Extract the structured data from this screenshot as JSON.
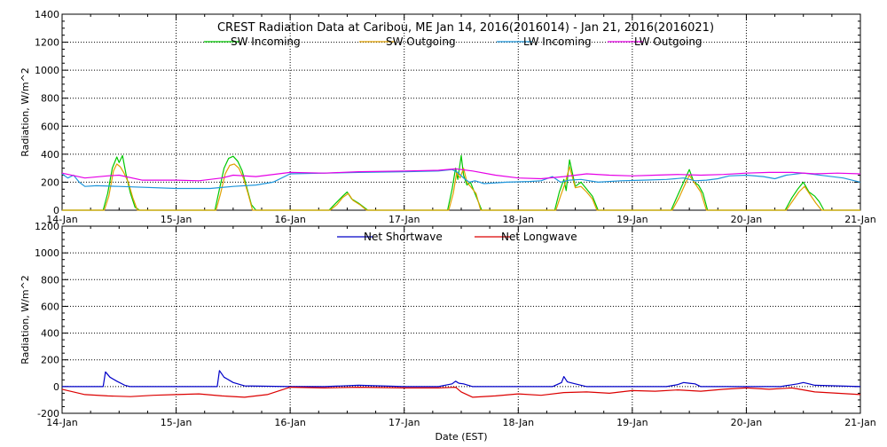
{
  "chart_data": [
    {
      "type": "line",
      "title": "CREST Radiation Data at Caribou, ME   Jan 14, 2016(2016014) - Jan 21, 2016(2016021)",
      "ylabel": "Radiation, W/m^2",
      "xlabel": "",
      "ylim": [
        0,
        1400
      ],
      "xlim": [
        0,
        7
      ],
      "yticks": [
        0,
        200,
        400,
        600,
        800,
        1000,
        1200,
        1400
      ],
      "xticks": [
        "14-Jan",
        "15-Jan",
        "16-Jan",
        "17-Jan",
        "18-Jan",
        "19-Jan",
        "20-Jan",
        "21-Jan"
      ],
      "grid": true,
      "legend": "top",
      "series": [
        {
          "name": "SW Incoming",
          "color": "#00c800",
          "x": [
            0,
            0.36,
            0.4,
            0.44,
            0.48,
            0.5,
            0.53,
            0.56,
            0.6,
            0.64,
            0.68,
            1,
            1.34,
            1.38,
            1.42,
            1.46,
            1.5,
            1.54,
            1.58,
            1.62,
            1.66,
            1.7,
            2,
            2.34,
            2.4,
            2.46,
            2.5,
            2.54,
            2.6,
            2.68,
            3,
            3.38,
            3.42,
            3.45,
            3.47,
            3.5,
            3.52,
            3.55,
            3.58,
            3.64,
            3.68,
            4,
            4.32,
            4.36,
            4.4,
            4.42,
            4.45,
            4.5,
            4.55,
            4.6,
            4.65,
            4.7,
            5,
            5.34,
            5.4,
            5.45,
            5.5,
            5.54,
            5.58,
            5.62,
            5.66,
            6,
            6.34,
            6.4,
            6.45,
            6.5,
            6.55,
            6.6,
            6.64,
            6.68,
            7
          ],
          "values": [
            0,
            0,
            120,
            300,
            380,
            340,
            390,
            260,
            120,
            20,
            0,
            0,
            0,
            150,
            300,
            370,
            385,
            350,
            280,
            160,
            40,
            0,
            0,
            0,
            50,
            100,
            130,
            80,
            50,
            0,
            0,
            0,
            150,
            300,
            220,
            390,
            250,
            180,
            200,
            80,
            0,
            0,
            0,
            130,
            220,
            140,
            360,
            170,
            200,
            150,
            100,
            0,
            0,
            0,
            110,
            200,
            290,
            200,
            180,
            120,
            0,
            0,
            0,
            90,
            150,
            200,
            130,
            100,
            60,
            0,
            0
          ]
        },
        {
          "name": "SW Outgoing",
          "color": "#e0a000",
          "x": [
            0,
            0.37,
            0.41,
            0.45,
            0.48,
            0.51,
            0.54,
            0.58,
            0.62,
            0.66,
            1,
            1.35,
            1.39,
            1.43,
            1.47,
            1.51,
            1.55,
            1.59,
            1.63,
            1.67,
            2,
            2.35,
            2.41,
            2.46,
            2.51,
            2.55,
            2.61,
            2.67,
            3,
            3.39,
            3.43,
            3.46,
            3.49,
            3.52,
            3.55,
            3.59,
            3.63,
            3.67,
            4,
            4.33,
            4.37,
            4.41,
            4.45,
            4.5,
            4.55,
            4.6,
            4.65,
            4.69,
            5,
            5.35,
            5.41,
            5.46,
            5.5,
            5.55,
            5.6,
            5.65,
            6,
            6.35,
            6.41,
            6.46,
            6.51,
            6.56,
            6.61,
            6.66,
            7
          ],
          "values": [
            0,
            0,
            100,
            280,
            330,
            310,
            270,
            200,
            90,
            0,
            0,
            0,
            120,
            260,
            320,
            330,
            300,
            230,
            120,
            0,
            0,
            0,
            40,
            90,
            120,
            70,
            40,
            0,
            0,
            0,
            120,
            270,
            230,
            300,
            200,
            160,
            120,
            0,
            0,
            0,
            100,
            190,
            310,
            160,
            170,
            130,
            80,
            0,
            0,
            0,
            90,
            180,
            250,
            190,
            130,
            0,
            0,
            0,
            70,
            130,
            170,
            110,
            50,
            0,
            0
          ]
        },
        {
          "name": "LW Incoming",
          "color": "#1e96dc",
          "x": [
            0,
            0.05,
            0.1,
            0.15,
            0.2,
            0.3,
            0.5,
            1,
            1.3,
            1.5,
            1.7,
            1.85,
            2,
            2.3,
            2.6,
            3,
            3.3,
            3.42,
            3.47,
            3.52,
            3.57,
            3.62,
            3.7,
            3.9,
            4.1,
            4.2,
            4.3,
            4.37,
            4.45,
            4.55,
            4.7,
            4.9,
            5.1,
            5.3,
            5.45,
            5.55,
            5.65,
            5.75,
            5.85,
            6,
            6.15,
            6.25,
            6.35,
            6.5,
            6.7,
            6.85,
            7
          ],
          "values": [
            260,
            230,
            250,
            200,
            170,
            175,
            170,
            155,
            155,
            170,
            180,
            200,
            260,
            265,
            270,
            275,
            280,
            290,
            270,
            230,
            200,
            210,
            190,
            200,
            205,
            210,
            240,
            200,
            215,
            220,
            200,
            210,
            215,
            220,
            230,
            210,
            215,
            225,
            245,
            250,
            240,
            225,
            250,
            265,
            245,
            230,
            200
          ]
        },
        {
          "name": "LW Outgoing",
          "color": "#e600e6",
          "x": [
            0,
            0.2,
            0.4,
            0.5,
            0.7,
            1,
            1.2,
            1.4,
            1.5,
            1.7,
            2,
            2.3,
            2.6,
            3,
            3.3,
            3.45,
            3.6,
            3.8,
            4,
            4.2,
            4.4,
            4.6,
            4.8,
            5,
            5.2,
            5.4,
            5.6,
            5.8,
            6,
            6.2,
            6.4,
            6.6,
            6.8,
            7
          ],
          "values": [
            265,
            230,
            245,
            250,
            215,
            215,
            210,
            230,
            250,
            240,
            270,
            265,
            275,
            280,
            285,
            295,
            280,
            250,
            230,
            225,
            240,
            260,
            250,
            245,
            250,
            255,
            250,
            255,
            265,
            270,
            270,
            260,
            265,
            260
          ]
        }
      ]
    },
    {
      "type": "line",
      "title": "",
      "ylabel": "Radiation, W/m^2",
      "xlabel": "Date (EST)",
      "ylim": [
        -200,
        1200
      ],
      "xlim": [
        0,
        7
      ],
      "yticks": [
        -200,
        0,
        200,
        400,
        600,
        800,
        1000,
        1200
      ],
      "xticks": [
        "14-Jan",
        "15-Jan",
        "16-Jan",
        "17-Jan",
        "18-Jan",
        "19-Jan",
        "20-Jan",
        "21-Jan"
      ],
      "grid": true,
      "legend": "top",
      "series": [
        {
          "name": "Net Shortwave",
          "color": "#0000c8",
          "x": [
            0,
            0.3,
            0.36,
            0.38,
            0.42,
            0.48,
            0.55,
            0.6,
            1,
            1.3,
            1.36,
            1.38,
            1.42,
            1.5,
            1.6,
            2,
            2.3,
            2.6,
            3,
            3.3,
            3.42,
            3.45,
            3.48,
            3.52,
            3.6,
            4,
            4.3,
            4.38,
            4.4,
            4.43,
            4.5,
            4.6,
            5,
            5.3,
            5.4,
            5.45,
            5.5,
            5.55,
            5.6,
            6,
            6.3,
            6.45,
            6.5,
            6.55,
            6.6,
            7
          ],
          "values": [
            0,
            0,
            0,
            110,
            70,
            40,
            10,
            0,
            0,
            0,
            0,
            120,
            70,
            30,
            5,
            0,
            0,
            10,
            0,
            0,
            20,
            40,
            25,
            20,
            0,
            0,
            0,
            30,
            75,
            35,
            20,
            0,
            0,
            0,
            15,
            30,
            25,
            20,
            0,
            0,
            0,
            20,
            30,
            20,
            10,
            0
          ]
        },
        {
          "name": "Net Longwave",
          "color": "#dc0000",
          "x": [
            0,
            0.1,
            0.2,
            0.4,
            0.6,
            0.8,
            1,
            1.2,
            1.4,
            1.6,
            1.8,
            2,
            2.3,
            2.6,
            3,
            3.3,
            3.45,
            3.5,
            3.6,
            3.8,
            4,
            4.2,
            4.4,
            4.6,
            4.8,
            5,
            5.2,
            5.4,
            5.6,
            5.8,
            6,
            6.2,
            6.4,
            6.6,
            6.8,
            7
          ],
          "values": [
            -20,
            -40,
            -60,
            -70,
            -75,
            -65,
            -60,
            -55,
            -70,
            -80,
            -60,
            -5,
            -10,
            -5,
            -10,
            -10,
            -5,
            -40,
            -80,
            -70,
            -55,
            -65,
            -45,
            -40,
            -50,
            -30,
            -35,
            -25,
            -35,
            -20,
            -10,
            -20,
            -10,
            -40,
            -50,
            -60
          ]
        }
      ]
    }
  ]
}
